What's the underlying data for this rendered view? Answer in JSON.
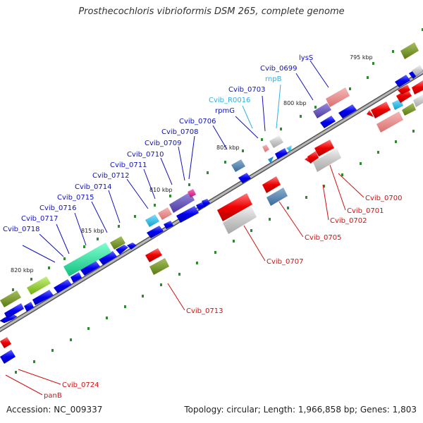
{
  "title": "Prosthecochloris vibrioformis DSM 265, complete genome",
  "footer": {
    "accession": "Accession: NC_009337",
    "stats": "Topology: circular; Length: 1,966,858 bp; Genes: 1,803"
  },
  "colors": {
    "forward_cds": "#0000ee",
    "reverse_cds": "#ee0000",
    "forward_label": "#1010c0",
    "reverse_label": "#d01010",
    "rna_label": "#30b0e0",
    "backbone": "#8a8a8a"
  },
  "kbp_labels": [
    "795 kbp",
    "800 kbp",
    "805 kbp",
    "810 kbp",
    "815 kbp",
    "820 kbp"
  ],
  "forward_labels": [
    "lysS",
    "Cvib_0699",
    "rnpB",
    "Cvib_0703",
    "Cvib_R0016",
    "rpmG",
    "Cvib_0706",
    "Cvib_0708",
    "Cvib_0709",
    "Cvib_0710",
    "Cvib_0711",
    "Cvib_0712",
    "Cvib_0714",
    "Cvib_0715",
    "Cvib_0716",
    "Cvib_0717",
    "Cvib_0718"
  ],
  "reverse_labels": [
    "Cvib_0700",
    "Cvib_0701",
    "Cvib_0702",
    "Cvib_0705",
    "Cvib_0707",
    "Cvib_0713",
    "Cvib_0724",
    "panB"
  ]
}
